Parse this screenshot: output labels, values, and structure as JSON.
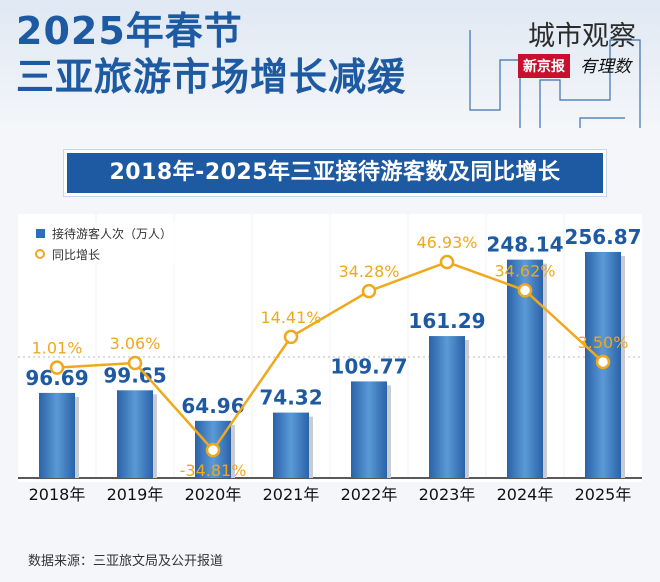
{
  "title": {
    "line1": "2025年春节",
    "line2": "三亚旅游市场增长减缓"
  },
  "brand": {
    "name": "城市观察",
    "badge": "新京报",
    "sub": "有理数"
  },
  "banner": "2018年-2025年三亚接待游客数及同比增长",
  "source": "数据来源：三亚旅文局及公开报道",
  "colors": {
    "bar": "#2d6fb5",
    "line": "#f0a81c",
    "title": "#1d5aa1",
    "value": "#1d5aa1"
  },
  "chart_data": {
    "type": "bar",
    "title": "2018年-2025年三亚接待游客数及同比增长",
    "categories": [
      "2018年",
      "2019年",
      "2020年",
      "2021年",
      "2022年",
      "2023年",
      "2024年",
      "2025年"
    ],
    "series": [
      {
        "name": "接待游客人次（万人）",
        "type": "bar",
        "values": [
          96.69,
          99.65,
          64.96,
          74.32,
          109.77,
          161.29,
          248.14,
          256.87
        ],
        "labels": [
          "96.69",
          "99.65",
          "64.96",
          "74.32",
          "109.77",
          "161.29",
          "248.14",
          "256.87"
        ]
      },
      {
        "name": "同比增长",
        "type": "line",
        "values": [
          1.01,
          3.06,
          -34.81,
          14.41,
          34.28,
          46.93,
          34.62,
          3.5
        ],
        "labels": [
          "1.01%",
          "3.06%",
          "-34.81%",
          "14.41%",
          "34.28%",
          "46.93%",
          "34.62%",
          "3.50%"
        ]
      }
    ],
    "ylim_bar": [
      0,
      300
    ],
    "ylim_line": [
      -40,
      60
    ],
    "legend": "top-left"
  }
}
